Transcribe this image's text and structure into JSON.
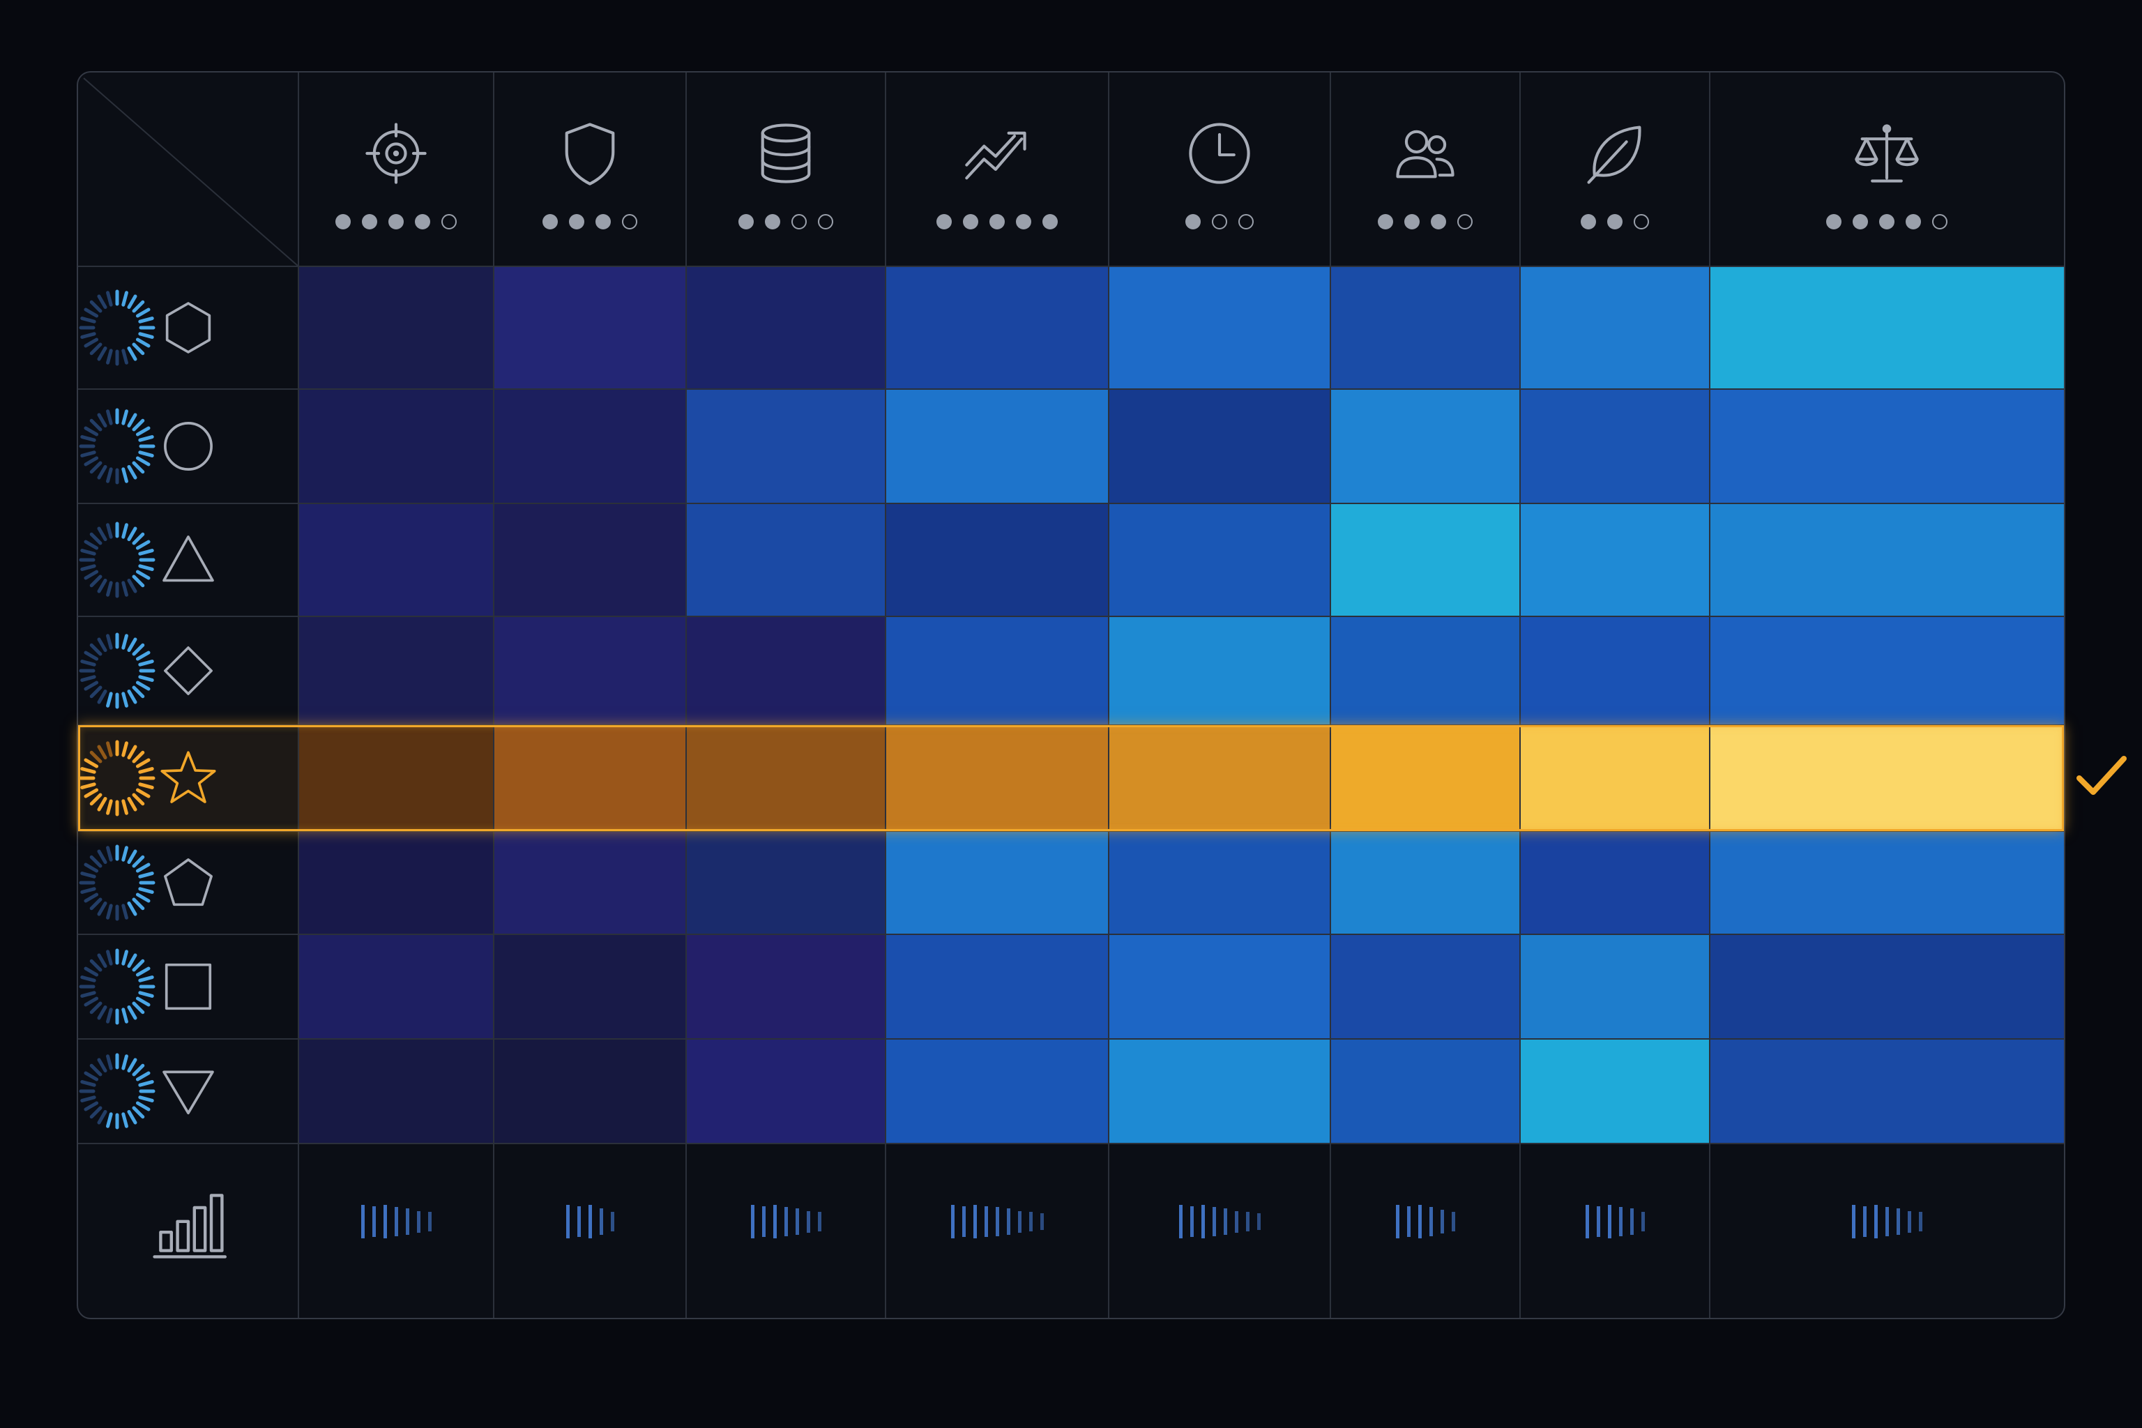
{
  "colors": {
    "background": "#07090f",
    "panel": "#0b0e15",
    "grid_line": "#2b303a",
    "icon_stroke": "#a7acb7",
    "selected_accent": "#f2a82a",
    "dot_filled": "#9aa0ab",
    "sparkline": "#3f71c2"
  },
  "criteria": [
    {
      "icon": "target-icon",
      "rating": 4,
      "max": 5
    },
    {
      "icon": "shield-icon",
      "rating": 3,
      "max": 4
    },
    {
      "icon": "database-icon",
      "rating": 2,
      "max": 4
    },
    {
      "icon": "trend-up-icon",
      "rating": 5,
      "max": 5
    },
    {
      "icon": "clock-icon",
      "rating": 1,
      "max": 3
    },
    {
      "icon": "users-icon",
      "rating": 3,
      "max": 4
    },
    {
      "icon": "leaf-icon",
      "rating": 2,
      "max": 3
    },
    {
      "icon": "scales-icon",
      "rating": 4,
      "max": 5
    }
  ],
  "options": [
    {
      "icon": "hexagon-icon",
      "selected": false
    },
    {
      "icon": "circle-icon",
      "selected": false
    },
    {
      "icon": "triangle-icon",
      "selected": false
    },
    {
      "icon": "diamond-icon",
      "selected": false
    },
    {
      "icon": "star-icon",
      "selected": true
    },
    {
      "icon": "pentagon-icon",
      "selected": false
    },
    {
      "icon": "square-icon",
      "selected": false
    },
    {
      "icon": "triangle-down-icon",
      "selected": false
    }
  ],
  "heatmap_colors": [
    [
      "#191c4c",
      "#232675",
      "#1b2468",
      "#1a45a1",
      "#1e6bc8",
      "#1a4ca7",
      "#1f7bcf",
      "#20acd9"
    ],
    [
      "#1a1d55",
      "#1c1f5e",
      "#1c4aa5",
      "#1e74cb",
      "#163a8e",
      "#1f83d2",
      "#1b55b3",
      "#1d63c2"
    ],
    [
      "#1e2167",
      "#1c1d55",
      "#1b4aa5",
      "#16378a",
      "#1a57b5",
      "#21acd9",
      "#1f8ad5",
      "#1e83d0"
    ],
    [
      "#1b1d52",
      "#21226a",
      "#1f1f62",
      "#1a51b1",
      "#1e8ad2",
      "#1a5dba",
      "#1a52b4",
      "#1c61c1"
    ],
    [
      "#5a3312",
      "#9a561a",
      "#905419",
      "#c37a1f",
      "#d58e24",
      "#eeaa2a",
      "#f8c84d",
      "#fbd768"
    ],
    [
      "#18194a",
      "#21226a",
      "#1a2b6c",
      "#1e78cc",
      "#1a55b3",
      "#1e84d0",
      "#1942a0",
      "#1d6dc6"
    ],
    [
      "#1e1f62",
      "#181a48",
      "#231f69",
      "#1a4fae",
      "#1d66c5",
      "#1a4aa7",
      "#1e7dcc",
      "#173e94"
    ],
    [
      "#171944",
      "#16183f",
      "#222271",
      "#1a56b6",
      "#1e8ad3",
      "#1a59b6",
      "#1faad9",
      "#1a4aa5"
    ]
  ],
  "completion": [
    0.45,
    0.5,
    0.4,
    0.6,
    0.9,
    0.45,
    0.55,
    0.6
  ],
  "sparklines": [
    [
      1.0,
      0.9,
      1.0,
      0.8,
      0.7,
      0.5,
      0.4
    ],
    [
      1.0,
      0.9,
      1.0,
      0.7,
      0.4
    ],
    [
      1.0,
      0.9,
      1.0,
      0.8,
      0.7,
      0.5,
      0.4
    ],
    [
      1.0,
      0.9,
      1.0,
      0.9,
      0.8,
      0.7,
      0.5,
      0.4,
      0.3
    ],
    [
      1.0,
      0.9,
      1.0,
      0.8,
      0.7,
      0.5,
      0.4,
      0.3
    ],
    [
      1.0,
      0.9,
      1.0,
      0.8,
      0.6,
      0.4
    ],
    [
      1.0,
      0.9,
      1.0,
      0.8,
      0.7,
      0.4
    ],
    [
      1.0,
      0.9,
      1.0,
      0.8,
      0.7,
      0.5,
      0.4
    ]
  ],
  "summary_icon": "bar-chart-icon",
  "selection_icon": "checkmark-icon"
}
